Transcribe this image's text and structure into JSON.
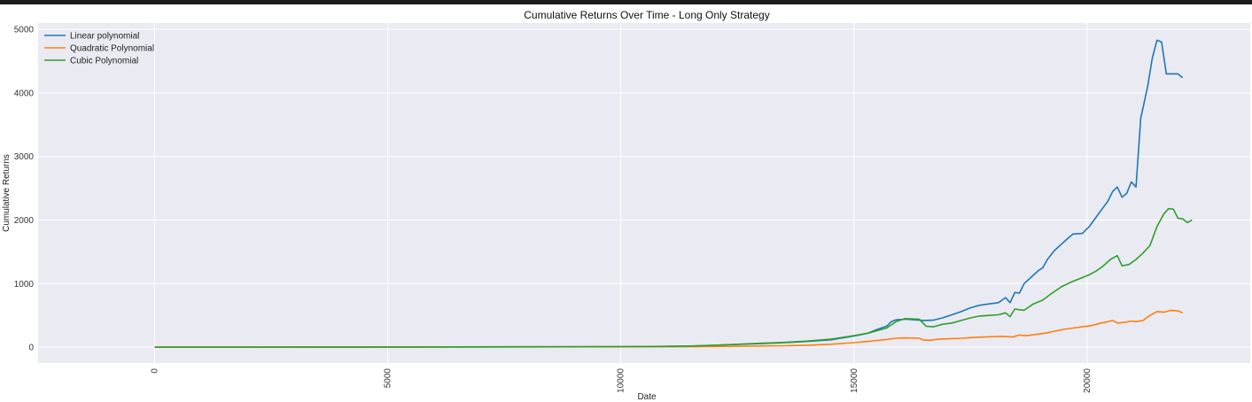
{
  "chart_data": {
    "type": "line",
    "title": "Cumulative Returns Over Time - Long Only Strategy",
    "xlabel": "Date",
    "ylabel": "Cumulative Returns",
    "xlim": [
      -2500,
      23500
    ],
    "ylim": [
      -250,
      5100
    ],
    "x_ticks": [
      0,
      5000,
      10000,
      15000,
      20000
    ],
    "y_ticks": [
      0,
      1000,
      2000,
      3000,
      4000,
      5000
    ],
    "grid": true,
    "legend_position": "top-left",
    "background_color": "#eaeaf2",
    "series": [
      {
        "name": "Linear polynomial",
        "color": "#1f77b4",
        "points": [
          [
            0,
            1
          ],
          [
            2000,
            1
          ],
          [
            4000,
            2
          ],
          [
            6000,
            3
          ],
          [
            8000,
            5
          ],
          [
            10000,
            8
          ],
          [
            11000,
            12
          ],
          [
            11500,
            18
          ],
          [
            12000,
            28
          ],
          [
            12500,
            42
          ],
          [
            13000,
            55
          ],
          [
            13500,
            70
          ],
          [
            14000,
            90
          ],
          [
            14500,
            115
          ],
          [
            15000,
            175
          ],
          [
            15300,
            220
          ],
          [
            15500,
            280
          ],
          [
            15700,
            330
          ],
          [
            15800,
            400
          ],
          [
            15900,
            430
          ],
          [
            16100,
            440
          ],
          [
            16300,
            430
          ],
          [
            16500,
            420
          ],
          [
            16700,
            425
          ],
          [
            16900,
            460
          ],
          [
            17100,
            510
          ],
          [
            17300,
            560
          ],
          [
            17500,
            620
          ],
          [
            17700,
            660
          ],
          [
            17900,
            680
          ],
          [
            18100,
            700
          ],
          [
            18250,
            780
          ],
          [
            18350,
            700
          ],
          [
            18450,
            860
          ],
          [
            18550,
            850
          ],
          [
            18650,
            1000
          ],
          [
            18800,
            1100
          ],
          [
            18950,
            1200
          ],
          [
            19050,
            1250
          ],
          [
            19150,
            1380
          ],
          [
            19300,
            1520
          ],
          [
            19450,
            1620
          ],
          [
            19600,
            1720
          ],
          [
            19700,
            1780
          ],
          [
            19900,
            1790
          ],
          [
            20050,
            1900
          ],
          [
            20150,
            2000
          ],
          [
            20300,
            2150
          ],
          [
            20450,
            2300
          ],
          [
            20550,
            2450
          ],
          [
            20650,
            2520
          ],
          [
            20750,
            2360
          ],
          [
            20850,
            2420
          ],
          [
            20950,
            2600
          ],
          [
            21050,
            2520
          ],
          [
            21150,
            3600
          ],
          [
            21300,
            4100
          ],
          [
            21400,
            4550
          ],
          [
            21500,
            4830
          ],
          [
            21600,
            4800
          ],
          [
            21700,
            4300
          ],
          [
            21950,
            4300
          ],
          [
            22050,
            4240
          ]
        ]
      },
      {
        "name": "Quadratic Polynomial",
        "color": "#ff7f0e",
        "points": [
          [
            0,
            0
          ],
          [
            2000,
            1
          ],
          [
            4000,
            1
          ],
          [
            6000,
            2
          ],
          [
            8000,
            3
          ],
          [
            10000,
            5
          ],
          [
            11000,
            7
          ],
          [
            12000,
            10
          ],
          [
            13000,
            18
          ],
          [
            13500,
            22
          ],
          [
            14000,
            30
          ],
          [
            14500,
            45
          ],
          [
            15000,
            70
          ],
          [
            15300,
            90
          ],
          [
            15500,
            105
          ],
          [
            15700,
            120
          ],
          [
            15900,
            140
          ],
          [
            16100,
            145
          ],
          [
            16400,
            140
          ],
          [
            16500,
            110
          ],
          [
            16650,
            110
          ],
          [
            16800,
            125
          ],
          [
            17000,
            130
          ],
          [
            17300,
            140
          ],
          [
            17500,
            150
          ],
          [
            17800,
            160
          ],
          [
            18000,
            165
          ],
          [
            18200,
            170
          ],
          [
            18400,
            160
          ],
          [
            18550,
            190
          ],
          [
            18700,
            180
          ],
          [
            18900,
            200
          ],
          [
            19100,
            220
          ],
          [
            19300,
            250
          ],
          [
            19500,
            280
          ],
          [
            19700,
            300
          ],
          [
            19900,
            320
          ],
          [
            20100,
            340
          ],
          [
            20300,
            380
          ],
          [
            20450,
            400
          ],
          [
            20550,
            420
          ],
          [
            20650,
            380
          ],
          [
            20800,
            390
          ],
          [
            20950,
            410
          ],
          [
            21050,
            400
          ],
          [
            21200,
            420
          ],
          [
            21350,
            500
          ],
          [
            21500,
            560
          ],
          [
            21650,
            550
          ],
          [
            21800,
            580
          ],
          [
            21950,
            570
          ],
          [
            22050,
            540
          ]
        ]
      },
      {
        "name": "Cubic Polynomial",
        "color": "#2ca02c",
        "points": [
          [
            0,
            1
          ],
          [
            2000,
            1
          ],
          [
            4000,
            2
          ],
          [
            6000,
            3
          ],
          [
            8000,
            5
          ],
          [
            10000,
            8
          ],
          [
            11000,
            12
          ],
          [
            11500,
            18
          ],
          [
            12000,
            30
          ],
          [
            12500,
            45
          ],
          [
            13000,
            60
          ],
          [
            13500,
            75
          ],
          [
            14000,
            95
          ],
          [
            14500,
            125
          ],
          [
            15000,
            180
          ],
          [
            15300,
            220
          ],
          [
            15500,
            260
          ],
          [
            15700,
            300
          ],
          [
            15900,
            400
          ],
          [
            16100,
            450
          ],
          [
            16400,
            440
          ],
          [
            16550,
            330
          ],
          [
            16700,
            320
          ],
          [
            16900,
            360
          ],
          [
            17100,
            380
          ],
          [
            17300,
            420
          ],
          [
            17500,
            460
          ],
          [
            17700,
            490
          ],
          [
            17900,
            500
          ],
          [
            18100,
            510
          ],
          [
            18250,
            540
          ],
          [
            18350,
            480
          ],
          [
            18450,
            600
          ],
          [
            18650,
            580
          ],
          [
            18850,
            680
          ],
          [
            19050,
            740
          ],
          [
            19250,
            850
          ],
          [
            19450,
            950
          ],
          [
            19650,
            1020
          ],
          [
            19850,
            1080
          ],
          [
            20050,
            1140
          ],
          [
            20200,
            1200
          ],
          [
            20350,
            1280
          ],
          [
            20500,
            1380
          ],
          [
            20650,
            1440
          ],
          [
            20750,
            1280
          ],
          [
            20900,
            1300
          ],
          [
            21050,
            1380
          ],
          [
            21200,
            1480
          ],
          [
            21350,
            1600
          ],
          [
            21500,
            1900
          ],
          [
            21650,
            2100
          ],
          [
            21750,
            2180
          ],
          [
            21850,
            2170
          ],
          [
            21950,
            2030
          ],
          [
            22050,
            2020
          ],
          [
            22150,
            1960
          ],
          [
            22250,
            2000
          ]
        ]
      }
    ]
  }
}
